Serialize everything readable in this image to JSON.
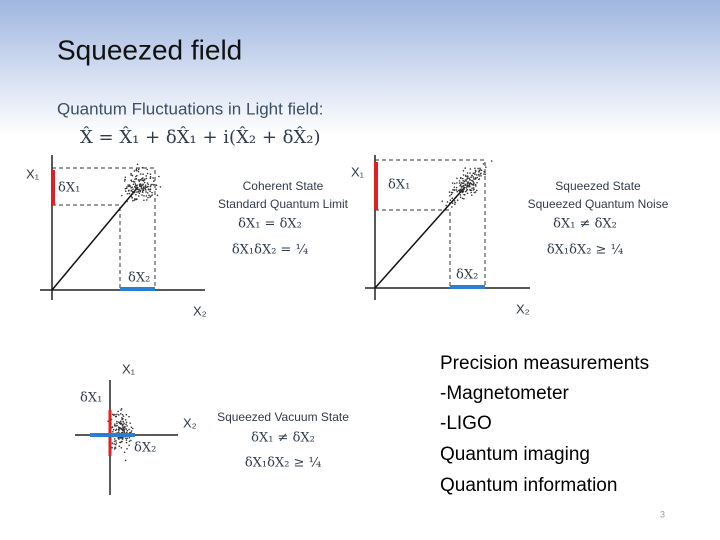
{
  "header": {
    "title": "Squeezed field"
  },
  "intro": {
    "heading": "Quantum Fluctuations in Light field:",
    "equation": "X̂ = X̂₁ + δX̂₁ + i(X̂₂ + δX̂₂)"
  },
  "panels": [
    {
      "y_axis": "X₁",
      "x_axis": "X₂",
      "dy": "δX₁",
      "dx": "δX₂",
      "lines": [
        "Coherent State",
        "Standard Quantum Limit",
        "δX₁ = δX₂",
        "δX₁δX₂ = ¼"
      ]
    },
    {
      "y_axis": "X₁",
      "x_axis": "X₂",
      "dy": "δX₁",
      "dx": "δX₂",
      "lines": [
        "Squeezed State",
        "Squeezed Quantum Noise",
        "δX₁ ≠ δX₂",
        "δX₁δX₂ ≥ ¼"
      ]
    },
    {
      "y_axis": "X₁",
      "x_axis": "X₂",
      "dy": "δX₁",
      "dx": "δX₂",
      "lines": [
        "Squeezed Vacuum State",
        "δX₁ ≠ δX₂",
        "δX₁δX₂ ≥ ¼"
      ]
    }
  ],
  "applications": [
    "Precision measurements",
    "-Magnetometer",
    "-LIGO",
    "Quantum imaging",
    "Quantum information"
  ],
  "footer": {
    "page_number": "3"
  }
}
